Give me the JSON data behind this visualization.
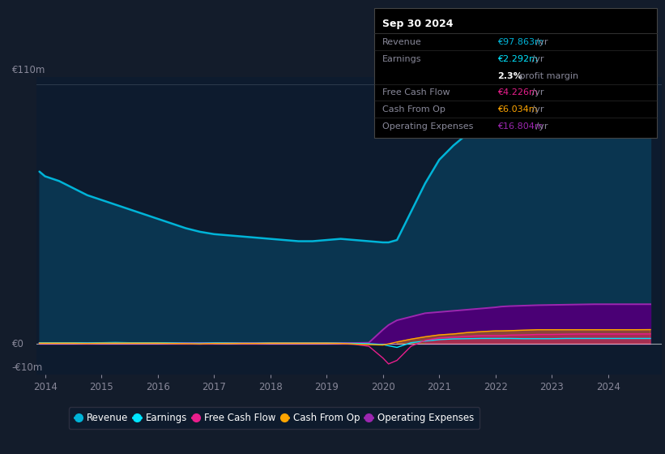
{
  "bg_color": "#131c2b",
  "chart_bg": "#0d1b2e",
  "years": [
    2013.9,
    2014.0,
    2014.25,
    2014.5,
    2014.75,
    2015.0,
    2015.25,
    2015.5,
    2015.75,
    2016.0,
    2016.25,
    2016.5,
    2016.75,
    2017.0,
    2017.25,
    2017.5,
    2017.75,
    2018.0,
    2018.25,
    2018.5,
    2018.75,
    2019.0,
    2019.25,
    2019.5,
    2019.75,
    2020.0,
    2020.1,
    2020.25,
    2020.5,
    2020.75,
    2021.0,
    2021.25,
    2021.5,
    2021.75,
    2022.0,
    2022.1,
    2022.25,
    2022.5,
    2022.75,
    2023.0,
    2023.25,
    2023.5,
    2023.75,
    2024.0,
    2024.25,
    2024.5,
    2024.75
  ],
  "revenue": [
    73,
    71,
    69,
    66,
    63,
    61,
    59,
    57,
    55,
    53,
    51,
    49,
    47.5,
    46.5,
    46,
    45.5,
    45,
    44.5,
    44,
    43.5,
    43.5,
    44,
    44.5,
    44,
    43.5,
    43,
    43,
    44,
    56,
    68,
    78,
    84,
    89,
    93,
    96,
    97,
    98,
    99,
    100,
    99,
    98,
    97,
    96,
    95,
    95.5,
    96.5,
    97.863
  ],
  "earnings": [
    0.5,
    0.5,
    0.5,
    0.5,
    0.4,
    0.5,
    0.6,
    0.5,
    0.5,
    0.5,
    0.4,
    0.3,
    0.3,
    0.4,
    0.4,
    0.3,
    0.3,
    0.4,
    0.4,
    0.4,
    0.4,
    0.4,
    0.3,
    0.2,
    0.1,
    -0.3,
    -0.8,
    -1.5,
    0.5,
    1.2,
    1.8,
    2.1,
    2.2,
    2.3,
    2.3,
    2.3,
    2.3,
    2.2,
    2.2,
    2.2,
    2.3,
    2.3,
    2.3,
    2.3,
    2.3,
    2.3,
    2.292
  ],
  "free_cash_flow": [
    0.2,
    0.2,
    0.2,
    0.2,
    0.1,
    0.2,
    0.2,
    0.2,
    0.2,
    0.2,
    0.1,
    0.0,
    -0.1,
    0.1,
    0.2,
    0.1,
    0.1,
    0.2,
    0.2,
    0.2,
    0.2,
    0.2,
    0.1,
    -0.2,
    -1.0,
    -6.0,
    -8.5,
    -7.0,
    -1.0,
    1.5,
    2.5,
    2.8,
    3.2,
    3.5,
    3.5,
    3.5,
    3.7,
    3.8,
    4.0,
    4.0,
    4.1,
    4.2,
    4.2,
    4.2,
    4.2,
    4.2,
    4.226
  ],
  "cash_from_op": [
    0.3,
    0.3,
    0.3,
    0.3,
    0.2,
    0.3,
    0.3,
    0.3,
    0.3,
    0.3,
    0.2,
    0.1,
    0.0,
    0.2,
    0.2,
    0.2,
    0.2,
    0.3,
    0.3,
    0.3,
    0.3,
    0.3,
    0.2,
    -0.1,
    -0.3,
    -0.5,
    0.0,
    0.8,
    2.0,
    3.0,
    3.8,
    4.2,
    4.8,
    5.2,
    5.5,
    5.5,
    5.6,
    5.8,
    6.0,
    6.0,
    6.0,
    6.0,
    6.0,
    6.0,
    6.0,
    6.0,
    6.034
  ],
  "operating_expenses": [
    0.4,
    0.4,
    0.4,
    0.4,
    0.4,
    0.4,
    0.4,
    0.4,
    0.4,
    0.4,
    0.4,
    0.4,
    0.4,
    0.4,
    0.4,
    0.4,
    0.4,
    0.4,
    0.4,
    0.4,
    0.4,
    0.4,
    0.4,
    0.4,
    0.5,
    6.0,
    8.0,
    10.0,
    11.5,
    13.0,
    13.5,
    14.0,
    14.5,
    15.0,
    15.5,
    15.8,
    16.0,
    16.2,
    16.4,
    16.5,
    16.6,
    16.7,
    16.8,
    16.8,
    16.8,
    16.8,
    16.804
  ],
  "revenue_color": "#00b4d8",
  "earnings_color": "#00e5ff",
  "fcf_color": "#e91e8c",
  "cashop_color": "#ffa500",
  "opex_color": "#9c27b0",
  "revenue_fill": "#0a3550",
  "opex_fill": "#4a0075",
  "ylim_min": -13,
  "ylim_max": 113,
  "y_110_pos": 110,
  "y_0_pos": 0,
  "y_m10_pos": -10,
  "xticks": [
    2014,
    2015,
    2016,
    2017,
    2018,
    2019,
    2020,
    2021,
    2022,
    2023,
    2024
  ],
  "legend_items": [
    {
      "label": "Revenue",
      "color": "#00b4d8"
    },
    {
      "label": "Earnings",
      "color": "#00e5ff"
    },
    {
      "label": "Free Cash Flow",
      "color": "#e91e8c"
    },
    {
      "label": "Cash From Op",
      "color": "#ffa500"
    },
    {
      "label": "Operating Expenses",
      "color": "#9c27b0"
    }
  ],
  "tooltip": {
    "title": "Sep 30 2024",
    "rows": [
      {
        "label": "Revenue",
        "value": "€97.863m",
        "suffix": " /yr",
        "value_color": "#00b4d8",
        "sep_after": true
      },
      {
        "label": "Earnings",
        "value": "€2.292m",
        "suffix": " /yr",
        "value_color": "#00e5ff",
        "sep_after": false
      },
      {
        "label": "",
        "value": "2.3%",
        "suffix": " profit margin",
        "value_color": "#ffffff",
        "sep_after": true,
        "bold_val": true
      },
      {
        "label": "Free Cash Flow",
        "value": "€4.226m",
        "suffix": " /yr",
        "value_color": "#e91e8c",
        "sep_after": true
      },
      {
        "label": "Cash From Op",
        "value": "€6.034m",
        "suffix": " /yr",
        "value_color": "#ffa500",
        "sep_after": true
      },
      {
        "label": "Operating Expenses",
        "value": "€16.804m",
        "suffix": " /yr",
        "value_color": "#9c27b0",
        "sep_after": false
      }
    ]
  }
}
